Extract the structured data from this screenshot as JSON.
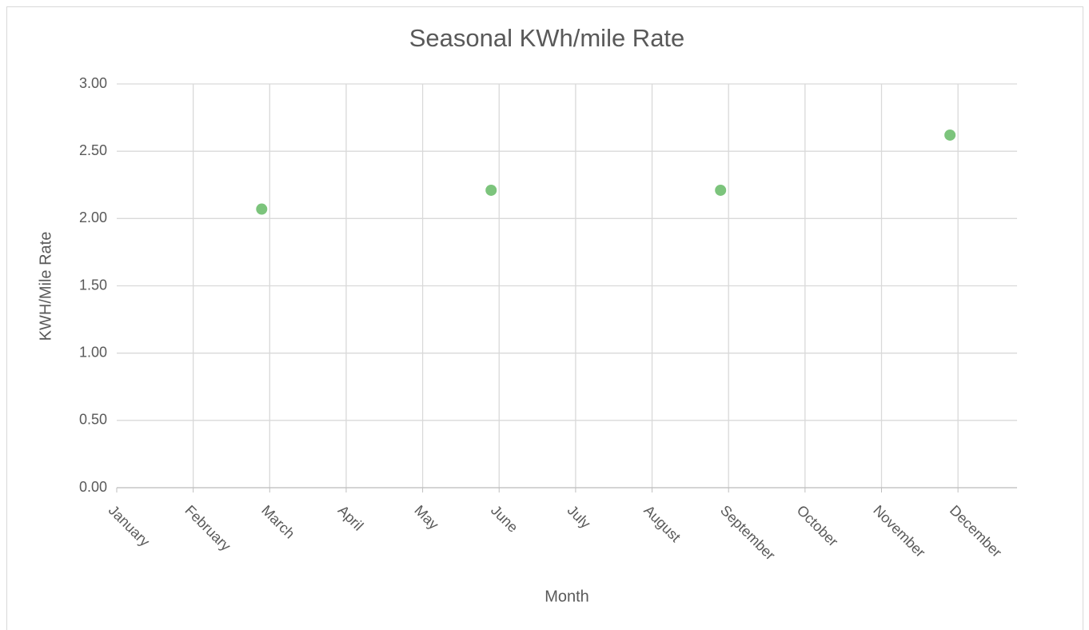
{
  "chart_data": {
    "type": "scatter",
    "title": "Seasonal KWh/mile Rate",
    "x_label": "Month",
    "y_label": "KWH/Mile Rate",
    "categories": [
      "January",
      "February",
      "March",
      "April",
      "May",
      "June",
      "July",
      "August",
      "September",
      "October",
      "November",
      "December"
    ],
    "values": [
      null,
      null,
      2.07,
      null,
      null,
      2.21,
      null,
      null,
      2.21,
      null,
      null,
      2.62
    ],
    "color": "#7cc47c",
    "ylim": [
      0,
      3
    ],
    "yticks": [
      {
        "value": 0,
        "label": "0.00"
      },
      {
        "value": 0.5,
        "label": "0.50"
      },
      {
        "value": 1,
        "label": "1.00"
      },
      {
        "value": 1.5,
        "label": "1.50"
      },
      {
        "value": 2,
        "label": "2.00"
      },
      {
        "value": 2.5,
        "label": "2.50"
      },
      {
        "value": 3,
        "label": "3.00"
      }
    ],
    "grid": true
  }
}
